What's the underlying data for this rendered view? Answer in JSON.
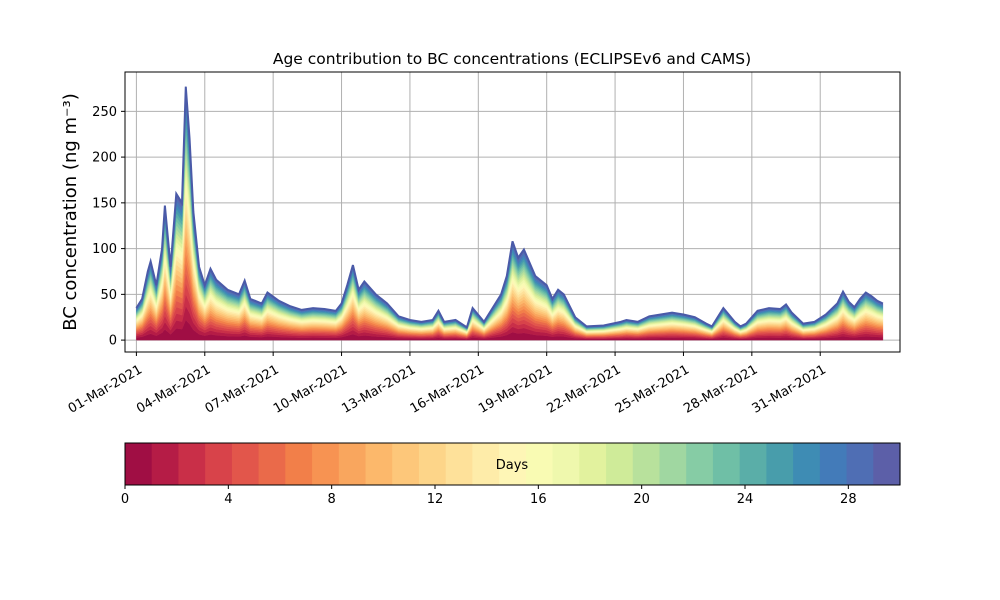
{
  "chart_data": {
    "type": "area",
    "title": "Age contribution to BC concentrations (ECLIPSEv6 and CAMS)",
    "ylabel": "BC concentration (ng m⁻³)",
    "xlabel": "",
    "x_range": [
      "2021-02-28T12:00",
      "2021-04-03T12:00"
    ],
    "ylim": [
      -13,
      293
    ],
    "yticks": [
      0,
      50,
      100,
      150,
      200,
      250
    ],
    "xticks": [
      {
        "date": "2021-03-01",
        "label": "01-Mar-2021"
      },
      {
        "date": "2021-03-04",
        "label": "04-Mar-2021"
      },
      {
        "date": "2021-03-07",
        "label": "07-Mar-2021"
      },
      {
        "date": "2021-03-10",
        "label": "10-Mar-2021"
      },
      {
        "date": "2021-03-13",
        "label": "13-Mar-2021"
      },
      {
        "date": "2021-03-16",
        "label": "16-Mar-2021"
      },
      {
        "date": "2021-03-19",
        "label": "19-Mar-2021"
      },
      {
        "date": "2021-03-22",
        "label": "22-Mar-2021"
      },
      {
        "date": "2021-03-25",
        "label": "25-Mar-2021"
      },
      {
        "date": "2021-03-28",
        "label": "28-Mar-2021"
      },
      {
        "date": "2021-03-31",
        "label": "31-Mar-2021"
      }
    ],
    "grid": true,
    "stacking": "stacked by age (days 0-30), youngest at bottom",
    "total_series": {
      "name": "",
      "points": [
        [
          "2021-03-01T00:00",
          35
        ],
        [
          "2021-03-01T06:00",
          45
        ],
        [
          "2021-03-01T12:00",
          75
        ],
        [
          "2021-03-01T15:00",
          86
        ],
        [
          "2021-03-01T21:00",
          60
        ],
        [
          "2021-03-02T03:00",
          100
        ],
        [
          "2021-03-02T06:00",
          147
        ],
        [
          "2021-03-02T12:00",
          80
        ],
        [
          "2021-03-02T18:00",
          160
        ],
        [
          "2021-03-03T00:00",
          150
        ],
        [
          "2021-03-03T04:00",
          277
        ],
        [
          "2021-03-03T08:00",
          220
        ],
        [
          "2021-03-03T12:00",
          140
        ],
        [
          "2021-03-03T18:00",
          80
        ],
        [
          "2021-03-04T00:00",
          60
        ],
        [
          "2021-03-04T06:00",
          78
        ],
        [
          "2021-03-04T12:00",
          66
        ],
        [
          "2021-03-05T00:00",
          55
        ],
        [
          "2021-03-05T12:00",
          50
        ],
        [
          "2021-03-05T18:00",
          65
        ],
        [
          "2021-03-06T00:00",
          45
        ],
        [
          "2021-03-06T12:00",
          40
        ],
        [
          "2021-03-06T18:00",
          52
        ],
        [
          "2021-03-07T06:00",
          43
        ],
        [
          "2021-03-07T18:00",
          37
        ],
        [
          "2021-03-08T06:00",
          33
        ],
        [
          "2021-03-08T18:00",
          35
        ],
        [
          "2021-03-09T06:00",
          34
        ],
        [
          "2021-03-09T18:00",
          32
        ],
        [
          "2021-03-10T00:00",
          40
        ],
        [
          "2021-03-10T06:00",
          60
        ],
        [
          "2021-03-10T12:00",
          82
        ],
        [
          "2021-03-10T18:00",
          55
        ],
        [
          "2021-03-11T00:00",
          64
        ],
        [
          "2021-03-11T12:00",
          50
        ],
        [
          "2021-03-12T00:00",
          40
        ],
        [
          "2021-03-12T12:00",
          26
        ],
        [
          "2021-03-13T00:00",
          22
        ],
        [
          "2021-03-13T12:00",
          20
        ],
        [
          "2021-03-14T00:00",
          22
        ],
        [
          "2021-03-14T06:00",
          32
        ],
        [
          "2021-03-14T12:00",
          20
        ],
        [
          "2021-03-15T00:00",
          22
        ],
        [
          "2021-03-15T12:00",
          14
        ],
        [
          "2021-03-15T18:00",
          35
        ],
        [
          "2021-03-16T06:00",
          20
        ],
        [
          "2021-03-16T18:00",
          40
        ],
        [
          "2021-03-17T00:00",
          50
        ],
        [
          "2021-03-17T06:00",
          70
        ],
        [
          "2021-03-17T12:00",
          108
        ],
        [
          "2021-03-17T18:00",
          90
        ],
        [
          "2021-03-18T00:00",
          99
        ],
        [
          "2021-03-18T12:00",
          70
        ],
        [
          "2021-03-19T00:00",
          60
        ],
        [
          "2021-03-19T06:00",
          45
        ],
        [
          "2021-03-19T12:00",
          55
        ],
        [
          "2021-03-19T18:00",
          50
        ],
        [
          "2021-03-20T06:00",
          25
        ],
        [
          "2021-03-20T18:00",
          15
        ],
        [
          "2021-03-21T12:00",
          16
        ],
        [
          "2021-03-22T06:00",
          20
        ],
        [
          "2021-03-22T12:00",
          22
        ],
        [
          "2021-03-23T00:00",
          20
        ],
        [
          "2021-03-23T12:00",
          26
        ],
        [
          "2021-03-24T00:00",
          28
        ],
        [
          "2021-03-24T12:00",
          30
        ],
        [
          "2021-03-25T00:00",
          28
        ],
        [
          "2021-03-25T12:00",
          25
        ],
        [
          "2021-03-26T00:00",
          18
        ],
        [
          "2021-03-26T06:00",
          15
        ],
        [
          "2021-03-26T18:00",
          35
        ],
        [
          "2021-03-27T06:00",
          20
        ],
        [
          "2021-03-27T12:00",
          15
        ],
        [
          "2021-03-27T18:00",
          18
        ],
        [
          "2021-03-28T06:00",
          32
        ],
        [
          "2021-03-28T18:00",
          35
        ],
        [
          "2021-03-29T06:00",
          34
        ],
        [
          "2021-03-29T12:00",
          39
        ],
        [
          "2021-03-29T18:00",
          30
        ],
        [
          "2021-03-30T06:00",
          18
        ],
        [
          "2021-03-30T18:00",
          20
        ],
        [
          "2021-03-31T06:00",
          28
        ],
        [
          "2021-03-31T18:00",
          40
        ],
        [
          "2021-04-01T00:00",
          53
        ],
        [
          "2021-04-01T06:00",
          42
        ],
        [
          "2021-04-01T12:00",
          36
        ],
        [
          "2021-04-01T18:00",
          45
        ],
        [
          "2021-04-02T00:00",
          52
        ],
        [
          "2021-04-02T06:00",
          48
        ],
        [
          "2021-04-02T12:00",
          43
        ],
        [
          "2021-04-02T18:00",
          40
        ]
      ]
    },
    "colorbar": {
      "label": "Days",
      "min": 0,
      "max": 30,
      "ticks": [
        0,
        4,
        8,
        12,
        16,
        20,
        24,
        28
      ],
      "colors": [
        "#a00e44",
        "#b51c46",
        "#c92f48",
        "#d8434a",
        "#e2564b",
        "#ea6a4a",
        "#f27f49",
        "#f79352",
        "#f9a65e",
        "#fcb86b",
        "#fdc77a",
        "#fdd589",
        "#fee19a",
        "#feeca9",
        "#fef6b6",
        "#f9fbb3",
        "#eff8ad",
        "#e2f29e",
        "#cfeb99",
        "#b8e19c",
        "#a0d7a1",
        "#86cca5",
        "#6fbfa6",
        "#5aaea8",
        "#489dab",
        "#3e8cb4",
        "#437bb9",
        "#4f6eb4",
        "#5c5fa8"
      ]
    }
  }
}
